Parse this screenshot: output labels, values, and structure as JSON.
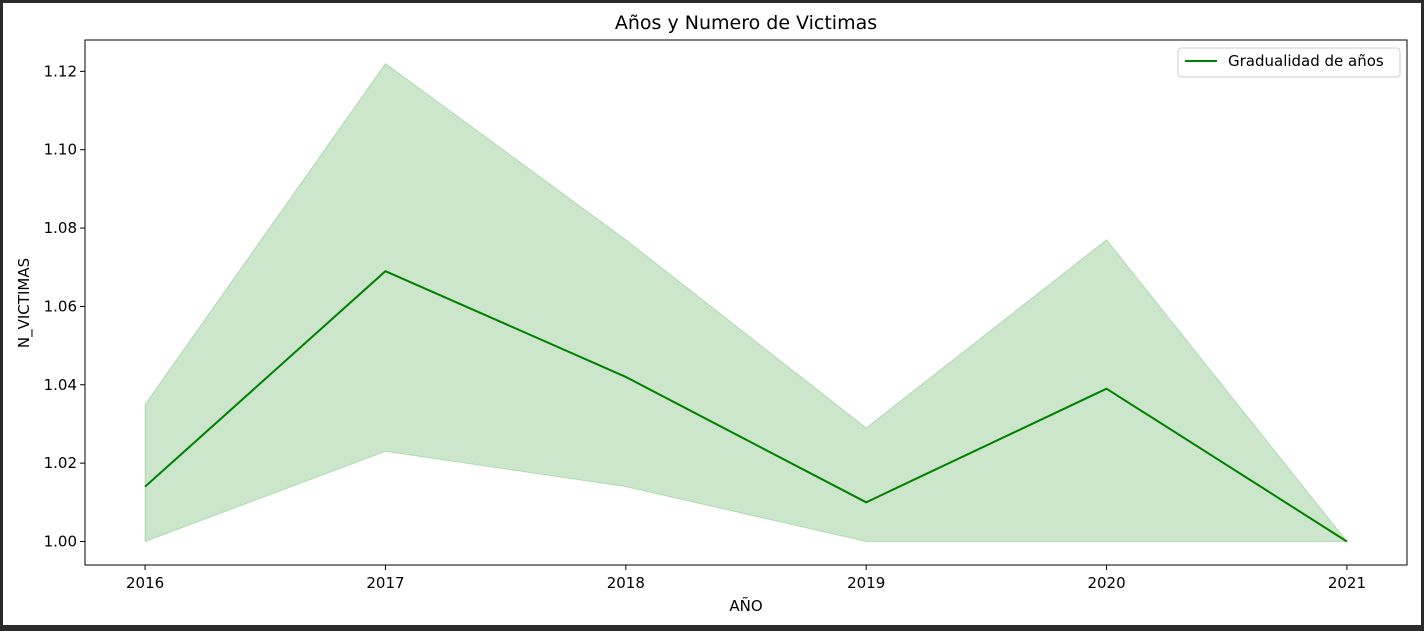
{
  "chart_data": {
    "type": "line",
    "title": "Años y Numero de Victimas",
    "xlabel": "AÑO",
    "ylabel": "N_VICTIMAS",
    "x": [
      2016,
      2017,
      2018,
      2019,
      2020,
      2021
    ],
    "x_tick_labels": [
      "2016",
      "2017",
      "2018",
      "2019",
      "2020",
      "2021"
    ],
    "y_ticks": [
      1.0,
      1.02,
      1.04,
      1.06,
      1.08,
      1.1,
      1.12
    ],
    "y_tick_labels": [
      "1.00",
      "1.02",
      "1.04",
      "1.06",
      "1.08",
      "1.10",
      "1.12"
    ],
    "xlim": [
      2015.75,
      2021.25
    ],
    "ylim": [
      0.994,
      1.128
    ],
    "grid": false,
    "legend_position": "top-right",
    "series": [
      {
        "name": "Gradualidad de años",
        "values": [
          1.014,
          1.069,
          1.042,
          1.01,
          1.039,
          1.0
        ],
        "ci_lower": [
          1.0,
          1.023,
          1.014,
          1.0,
          1.0,
          1.0
        ],
        "ci_upper": [
          1.035,
          1.122,
          1.077,
          1.029,
          1.077,
          1.0
        ],
        "color": "#008000",
        "band_color": "#008000"
      }
    ]
  }
}
